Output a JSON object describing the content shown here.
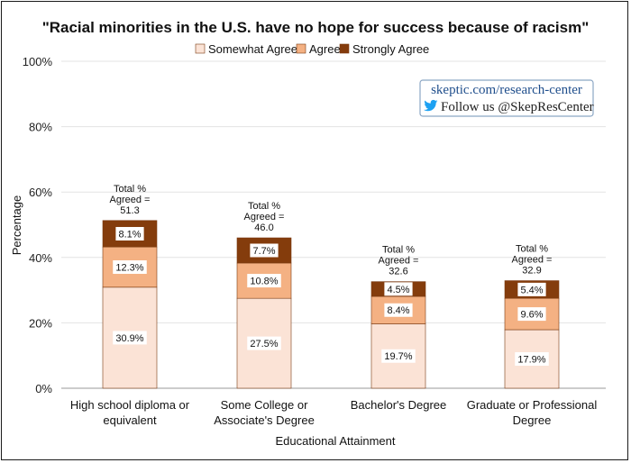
{
  "chart_data": {
    "type": "bar",
    "stacked": true,
    "title": "\"Racial minorities in the U.S. have no hope for success because of racism\"",
    "xlabel": "Educational Attainment",
    "ylabel": "Percentage",
    "ylim": [
      0,
      100
    ],
    "yticks": [
      0,
      20,
      40,
      60,
      80,
      100
    ],
    "ytick_suffix": "%",
    "grid": true,
    "legend_position": "top-center",
    "categories": [
      [
        "High school diploma or",
        "equivalent"
      ],
      [
        "Some College or",
        "Associate's Degree"
      ],
      [
        "Bachelor's Degree"
      ],
      [
        "Graduate or Professional",
        "Degree"
      ]
    ],
    "series": [
      {
        "name": "Somewhat Agree",
        "color": "#fbe3d6",
        "values": [
          30.9,
          27.5,
          19.7,
          17.9
        ],
        "labels": [
          "30.9%",
          "27.5%",
          "19.7%",
          "17.9%"
        ]
      },
      {
        "name": "Agree",
        "color": "#f4b183",
        "values": [
          12.3,
          10.8,
          8.4,
          9.6
        ],
        "labels": [
          "12.3%",
          "10.8%",
          "8.4%",
          "9.6%"
        ]
      },
      {
        "name": "Strongly Agree",
        "color": "#843c0c",
        "values": [
          8.1,
          7.7,
          4.5,
          5.4
        ],
        "labels": [
          "8.1%",
          "7.7%",
          "4.5%",
          "5.4%"
        ]
      }
    ],
    "total_labels": [
      [
        "Total %",
        "Agreed =",
        "51.3"
      ],
      [
        "Total %",
        "Agreed =",
        "46.0"
      ],
      [
        "Total %",
        "Agreed =",
        "32.6"
      ],
      [
        "Total %",
        "Agreed =",
        "32.9"
      ]
    ]
  },
  "watermark": {
    "link": "skeptic.com/research-center",
    "follow": "Follow us @SkepResCenter",
    "twitter_icon": "twitter-bird-icon",
    "link_color": "#1f4e8c",
    "icon_color": "#1da1f2"
  }
}
